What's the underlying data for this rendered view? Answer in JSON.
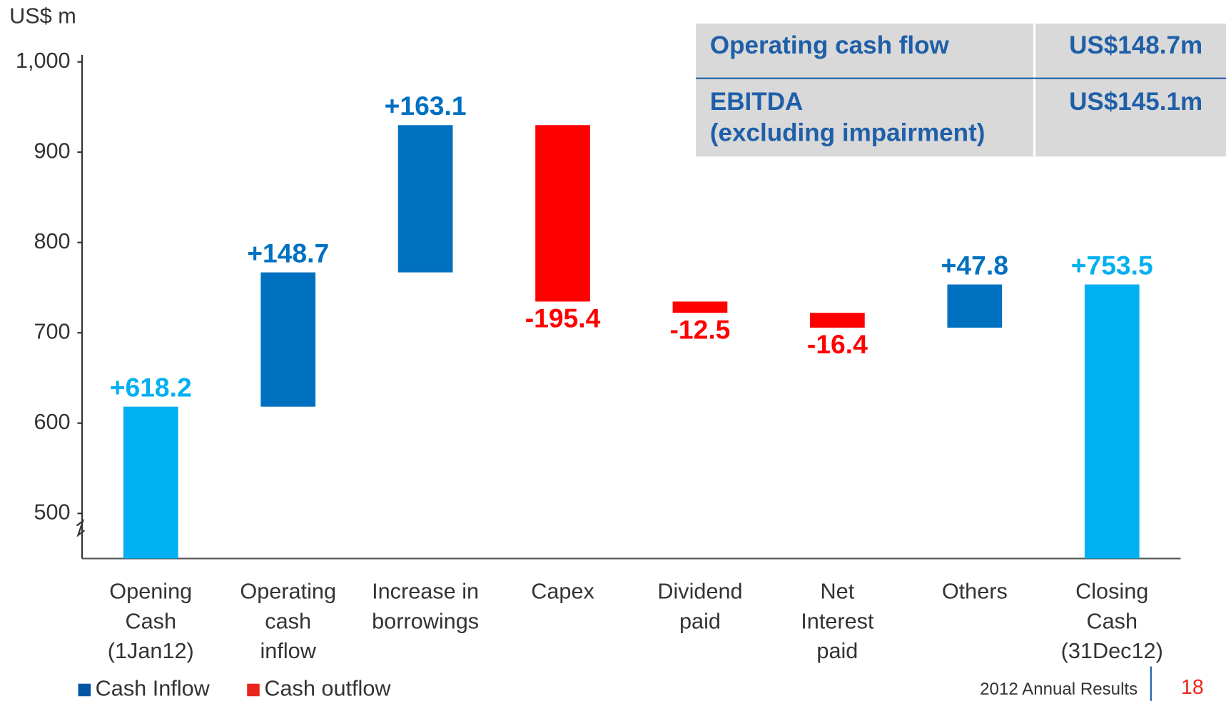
{
  "chart_data": {
    "type": "waterfall",
    "y_label": "US$ m",
    "categories": [
      "Opening\nCash\n(1Jan12)",
      "Operating\ncash\ninflow",
      "Increase in\nborrowings",
      "Capex",
      "Dividend\npaid",
      "Net\nInterest\npaid",
      "Others",
      "Closing\nCash\n(31Dec12)"
    ],
    "values": [
      618.2,
      148.7,
      163.1,
      -195.4,
      -12.5,
      -16.4,
      47.8,
      753.5
    ],
    "value_labels": [
      "+618.2",
      "+148.7",
      "+163.1",
      "-195.4",
      "-12.5",
      "-16.4",
      "+47.8",
      "+753.5"
    ],
    "measure": [
      "absolute",
      "relative",
      "relative",
      "relative",
      "relative",
      "relative",
      "relative",
      "total"
    ],
    "bar_colors": [
      "#00b0f0",
      "#0070c0",
      "#0070c0",
      "#ff0000",
      "#ff0000",
      "#ff0000",
      "#0070c0",
      "#00b0f0"
    ],
    "ylim": [
      450,
      1000
    ],
    "yticks": [
      500,
      600,
      700,
      800,
      900,
      {
        "value": 1000,
        "label": "1,000"
      }
    ],
    "legend": [
      {
        "name": "Cash Inflow",
        "color": "#0055a5"
      },
      {
        "name": "Cash outflow",
        "color": "#e8261b"
      }
    ],
    "table": {
      "rows": [
        [
          "Operating cash flow",
          "US$148.7m"
        ],
        [
          "EBITDA\n(excluding impairment)",
          "US$145.1m"
        ]
      ]
    }
  },
  "footer": {
    "text": "2012 Annual Results",
    "page": "18"
  }
}
